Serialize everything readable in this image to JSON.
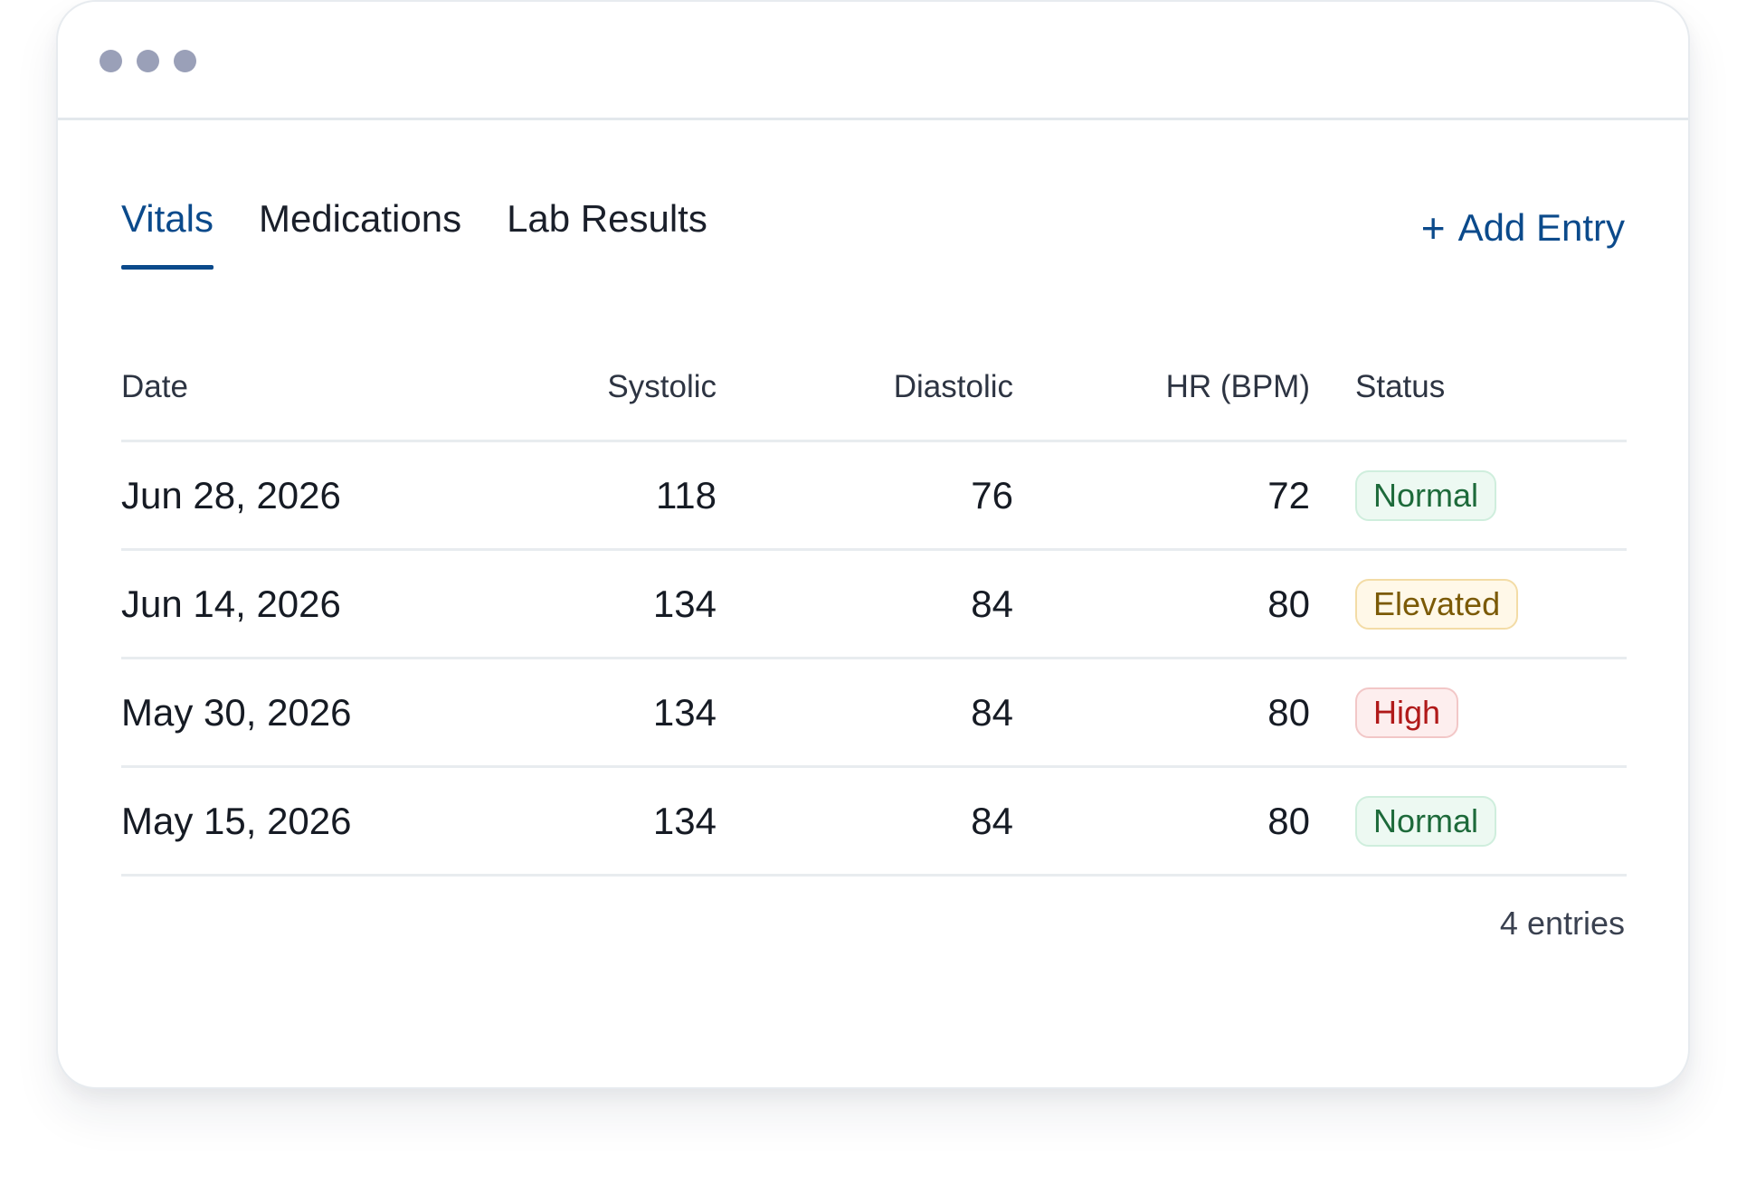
{
  "window": {
    "titlebar_controls": [
      "dot",
      "dot",
      "dot"
    ]
  },
  "tabs": [
    {
      "label": "Vitals",
      "active": true
    },
    {
      "label": "Medications",
      "active": false
    },
    {
      "label": "Lab Results",
      "active": false
    }
  ],
  "actions": {
    "add_entry_icon": "plus-icon",
    "add_entry_icon_glyph": "+",
    "add_entry_label": "Add Entry"
  },
  "table": {
    "headers": {
      "date": "Date",
      "systolic": "Systolic",
      "diastolic": "Diastolic",
      "hr": "HR (BPM)",
      "status": "Status"
    },
    "rows": [
      {
        "date": "Jun 28, 2026",
        "systolic": "118",
        "diastolic": "76",
        "hr": "72",
        "status": "Normal"
      },
      {
        "date": "Jun 14, 2026",
        "systolic": "134",
        "diastolic": "84",
        "hr": "80",
        "status": "Elevated"
      },
      {
        "date": "May 30, 2026",
        "systolic": "134",
        "diastolic": "84",
        "hr": "80",
        "status": "High"
      },
      {
        "date": "May 15, 2026",
        "systolic": "134",
        "diastolic": "84",
        "hr": "80",
        "status": "Normal"
      }
    ]
  },
  "footer": {
    "entries_text": "4 entries"
  },
  "colors": {
    "accent": "#0b4a8b",
    "normal_text": "#1d6a3a",
    "normal_bg": "#edf9f2",
    "elevated_text": "#7b5a06",
    "elevated_bg": "#fff8e8",
    "high_text": "#b01919",
    "high_bg": "#fdeeee",
    "window_dot": "#9aa0b8"
  }
}
